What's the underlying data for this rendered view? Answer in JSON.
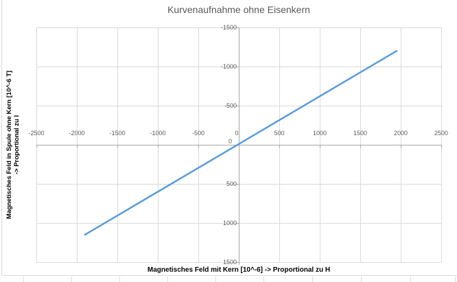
{
  "chart_data": {
    "type": "line",
    "title": "Kurvenaufnahme ohne Eisenkern",
    "xlabel": "Magnetisches Feld mit Kern [10^-6] -> Proportional zu H",
    "ylabel": "Magnetisches Feld in Spule ohne Kern [10^-6 T] -> Proportional zu I",
    "ylabel_lines": [
      "Magnetisches Feld in Spule ohne Kern [10^-6 T]",
      "-> Proportional zu I"
    ],
    "xlim": [
      -2500,
      2500
    ],
    "ylim": [
      -1500,
      1500
    ],
    "y_axis_reversed": true,
    "x_ticks": [
      -2500,
      -2000,
      -1500,
      -1000,
      -500,
      0,
      500,
      1000,
      1500,
      2000,
      2500
    ],
    "y_ticks": [
      -1500,
      -1000,
      -500,
      0,
      500,
      1000,
      1500
    ],
    "grid": true,
    "legend": "none",
    "series": [
      {
        "points": [
          [
            -1900,
            1150
          ],
          [
            0,
            -10
          ],
          [
            1950,
            -1200
          ]
        ]
      }
    ],
    "colors": {
      "line": "#5B9BD5",
      "gridline": "#D9D9D9",
      "axis": "#A6A6A6",
      "tick_text": "#595959",
      "title_text": "#595959",
      "axis_title_text": "#000000",
      "chart_border": "#D9D9D9"
    }
  }
}
